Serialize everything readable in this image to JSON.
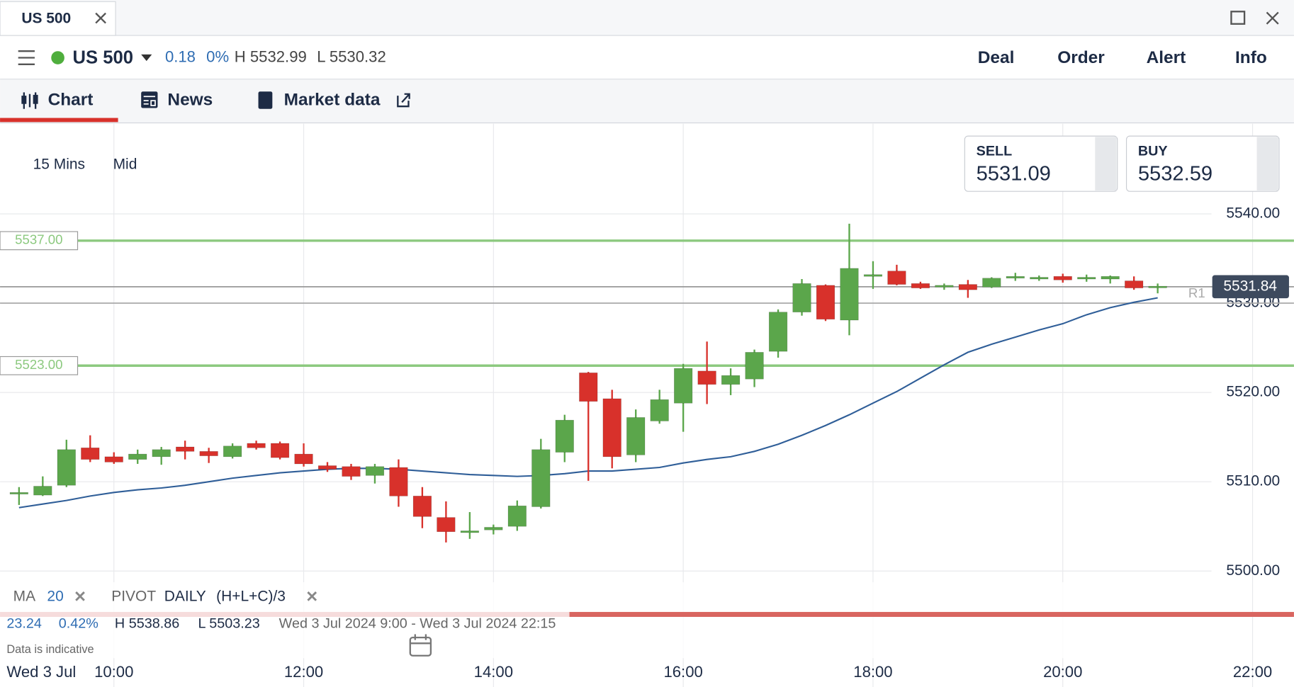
{
  "window": {
    "tab": "US 500"
  },
  "header": {
    "instrument": "US 500",
    "change": 0.18,
    "change_pct": "0%",
    "high": "H 5532.99",
    "low": "L 5530.32",
    "actions": [
      "Deal",
      "Order",
      "Alert",
      "Info"
    ]
  },
  "tabs": [
    "Chart",
    "News",
    "Market data"
  ],
  "chart_controls": {
    "interval": "15 Mins",
    "price_type": "Mid"
  },
  "quotes": {
    "sell_label": "SELL",
    "sell": 5531.09,
    "buy_label": "BUY",
    "buy": 5532.59
  },
  "indicators": {
    "ma_name": "MA",
    "ma_period": 20,
    "pivot_name": "PIVOT",
    "pivot_period": "DAILY",
    "pivot_formula": "(H+L+C)/3"
  },
  "stats": {
    "change": 23.24,
    "change_pct": "0.42%",
    "high": "H 5538.86",
    "low": "L 5503.23",
    "range": "Wed 3 Jul 2024 9:00 - Wed 3 Jul 2024 22:15"
  },
  "footer": {
    "note": "Data is indicative"
  },
  "chart_data": {
    "type": "candlestick",
    "grid": true,
    "date_label": "Wed 3 Jul",
    "up_color": "#5ba64b",
    "down_color": "#d8312b",
    "x": [
      9,
      9.25,
      9.5,
      9.75,
      10,
      10.25,
      10.5,
      10.75,
      11,
      11.25,
      11.5,
      11.75,
      12,
      12.25,
      12.5,
      12.75,
      13,
      13.25,
      13.5,
      13.75,
      14,
      14.25,
      14.5,
      14.75,
      15,
      15.25,
      15.5,
      15.75,
      16,
      16.25,
      16.5,
      16.75,
      17,
      17.25,
      17.5,
      17.75,
      18,
      18.25,
      18.5,
      18.75,
      19,
      19.25,
      19.5,
      19.75,
      20,
      20.25,
      20.5,
      20.75,
      21
    ],
    "open": [
      5508.7,
      5508.5,
      5509.6,
      5513.8,
      5512.8,
      5512.5,
      5512.8,
      5513.9,
      5513.4,
      5512.8,
      5514.3,
      5514.3,
      5513.1,
      5511.8,
      5511.7,
      5510.7,
      5511.6,
      5508.4,
      5506.0,
      5504.3,
      5504.6,
      5505.0,
      5507.2,
      5513.3,
      5522.2,
      5519.3,
      5513.0,
      5516.8,
      5518.8,
      5522.4,
      5520.9,
      5521.5,
      5524.6,
      5529.0,
      5532.0,
      5528.1,
      5533.0,
      5533.6,
      5532.2,
      5531.8,
      5532.1,
      5531.8,
      5532.8,
      5532.7,
      5533.0,
      5532.7,
      5532.7,
      5532.5,
      5531.8
    ],
    "high": [
      5509.4,
      5510.6,
      5514.7,
      5515.2,
      5513.3,
      5513.6,
      5513.9,
      5514.6,
      5513.8,
      5514.3,
      5514.6,
      5514.5,
      5514.3,
      5512.2,
      5512.0,
      5512.0,
      5512.5,
      5509.4,
      5507.8,
      5506.6,
      5505.2,
      5507.9,
      5514.8,
      5517.5,
      5522.3,
      5520.3,
      5518.1,
      5520.3,
      5523.2,
      5525.7,
      5522.7,
      5524.8,
      5529.3,
      5532.7,
      5532.1,
      5538.9,
      5534.7,
      5534.3,
      5532.4,
      5532.2,
      5532.6,
      5532.9,
      5533.4,
      5533.1,
      5533.3,
      5533.2,
      5533.1,
      5533.0,
      5532.2
    ],
    "low": [
      5507.4,
      5508.4,
      5509.4,
      5512.2,
      5512.0,
      5512.0,
      5511.9,
      5512.5,
      5512.1,
      5512.6,
      5513.6,
      5512.5,
      5511.7,
      5511.1,
      5510.2,
      5509.8,
      5507.2,
      5504.8,
      5503.2,
      5503.6,
      5504.1,
      5504.5,
      5507.0,
      5512.2,
      5510.1,
      5511.5,
      5512.2,
      5516.5,
      5515.6,
      5518.7,
      5519.7,
      5520.6,
      5523.9,
      5528.6,
      5528.0,
      5526.4,
      5531.6,
      5532.0,
      5531.6,
      5531.5,
      5530.6,
      5531.7,
      5532.5,
      5532.5,
      5532.3,
      5532.4,
      5532.2,
      5531.5,
      5531.1
    ],
    "close": [
      5508.8,
      5509.5,
      5513.6,
      5512.5,
      5512.2,
      5513.1,
      5513.6,
      5513.4,
      5512.9,
      5514.0,
      5513.8,
      5512.7,
      5512.0,
      5511.4,
      5510.6,
      5511.7,
      5508.4,
      5506.1,
      5504.4,
      5504.5,
      5504.9,
      5507.3,
      5513.6,
      5516.9,
      5519.0,
      5512.8,
      5517.2,
      5519.2,
      5522.7,
      5520.9,
      5521.9,
      5524.5,
      5529.0,
      5532.2,
      5528.2,
      5533.9,
      5533.2,
      5532.1,
      5531.7,
      5532.0,
      5531.5,
      5532.8,
      5533.0,
      5532.9,
      5532.6,
      5532.9,
      5533.0,
      5531.7,
      5531.9
    ],
    "ma": {
      "color": "#2f5e98",
      "values": [
        5507.1,
        5507.5,
        5507.9,
        5508.4,
        5508.8,
        5509.1,
        5509.3,
        5509.6,
        5510.0,
        5510.4,
        5510.7,
        5511.0,
        5511.2,
        5511.4,
        5511.5,
        5511.5,
        5511.4,
        5511.2,
        5511.0,
        5510.8,
        5510.7,
        5510.6,
        5510.7,
        5510.9,
        5511.2,
        5511.2,
        5511.4,
        5511.6,
        5512.1,
        5512.5,
        5512.8,
        5513.4,
        5514.2,
        5515.2,
        5516.3,
        5517.5,
        5518.8,
        5520.1,
        5521.6,
        5523.1,
        5524.5,
        5525.4,
        5526.2,
        5527.0,
        5527.7,
        5528.7,
        5529.5,
        5530.1,
        5530.6
      ]
    },
    "levels": [
      {
        "value": 5537,
        "label": "5537.00",
        "color": "#8cc97f"
      },
      {
        "value": 5523,
        "label": "5523.00",
        "color": "#8cc97f"
      }
    ],
    "last_price": 5531.84,
    "pivot": {
      "name": "R1",
      "value": 5530.0
    },
    "xlim": [
      8.8,
      22.41
    ],
    "ylim": [
      5495.6,
      5550.1
    ],
    "xticks": [
      {
        "value": 10,
        "label": "10:00"
      },
      {
        "value": 12,
        "label": "12:00"
      },
      {
        "value": 14,
        "label": "14:00"
      },
      {
        "value": 16,
        "label": "16:00"
      },
      {
        "value": 18,
        "label": "18:00"
      },
      {
        "value": 20,
        "label": "20:00"
      },
      {
        "value": 22,
        "label": "22:00"
      }
    ],
    "yticks": [
      {
        "value": 5500,
        "label": "5500.00"
      },
      {
        "value": 5510,
        "label": "5510.00"
      },
      {
        "value": 5520,
        "label": "5520.00"
      },
      {
        "value": 5530,
        "label": "5530.00"
      },
      {
        "value": 5540,
        "label": "5540.00"
      }
    ]
  }
}
